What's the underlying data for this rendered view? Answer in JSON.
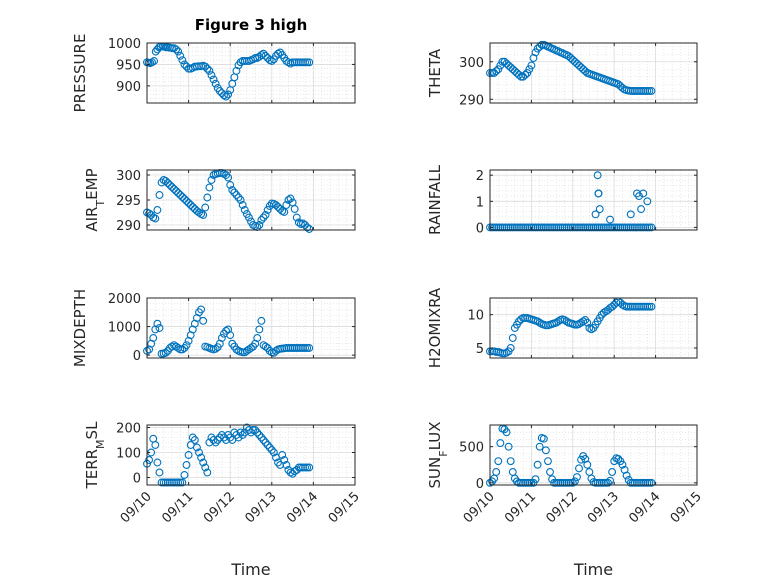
{
  "figure_title": "Figure 3 high",
  "x_axis_label": "Time",
  "marker_color": "#0072BD",
  "chart_data": [
    {
      "type": "scatter",
      "ylabel": "PRESSURE",
      "ylim": [
        860,
        1000
      ],
      "yticks": [
        900,
        950,
        1000
      ],
      "x": [
        0.0,
        0.04,
        0.08,
        0.12,
        0.17,
        0.21,
        0.25,
        0.29,
        0.33,
        0.38,
        0.42,
        0.46,
        0.5,
        0.55,
        0.6,
        0.65,
        0.7,
        0.75,
        0.8,
        0.85,
        0.9,
        0.95,
        1.0,
        1.05,
        1.1,
        1.15,
        1.2,
        1.25,
        1.3,
        1.35,
        1.4,
        1.45,
        1.5,
        1.55,
        1.6,
        1.65,
        1.7,
        1.75,
        1.8,
        1.85,
        1.9,
        1.95,
        2.0,
        2.05,
        2.1,
        2.15,
        2.2,
        2.25,
        2.3,
        2.35,
        2.4,
        2.45,
        2.5,
        2.55,
        2.6,
        2.65,
        2.7,
        2.75,
        2.8,
        2.85,
        2.9,
        2.95,
        3.0,
        3.05,
        3.1,
        3.15,
        3.2,
        3.25,
        3.3,
        3.35,
        3.4,
        3.45,
        3.5,
        3.55,
        3.6,
        3.65,
        3.7,
        3.75,
        3.8,
        3.85,
        3.9
      ],
      "y": [
        955,
        954,
        953,
        955,
        958,
        980,
        985,
        990,
        992,
        992,
        991,
        990,
        990,
        989,
        988,
        988,
        985,
        980,
        970,
        960,
        950,
        945,
        940,
        940,
        942,
        945,
        945,
        946,
        946,
        947,
        945,
        940,
        935,
        925,
        915,
        905,
        895,
        888,
        883,
        878,
        875,
        880,
        890,
        905,
        920,
        935,
        948,
        955,
        958,
        958,
        958,
        958,
        960,
        962,
        965,
        965,
        968,
        972,
        975,
        970,
        965,
        960,
        958,
        962,
        970,
        975,
        978,
        972,
        965,
        958,
        955,
        952,
        955,
        955,
        955,
        955,
        955,
        955,
        955,
        955,
        955
      ]
    },
    {
      "type": "scatter",
      "ylabel": "THETA",
      "ylim": [
        289,
        305
      ],
      "yticks": [
        290,
        300
      ],
      "x": [
        0.0,
        0.05,
        0.1,
        0.15,
        0.2,
        0.25,
        0.3,
        0.35,
        0.4,
        0.45,
        0.5,
        0.55,
        0.6,
        0.65,
        0.7,
        0.75,
        0.8,
        0.85,
        0.9,
        0.95,
        1.0,
        1.05,
        1.1,
        1.15,
        1.2,
        1.25,
        1.3,
        1.35,
        1.4,
        1.45,
        1.5,
        1.55,
        1.6,
        1.65,
        1.7,
        1.75,
        1.8,
        1.85,
        1.9,
        1.95,
        2.0,
        2.05,
        2.1,
        2.15,
        2.2,
        2.25,
        2.3,
        2.35,
        2.4,
        2.45,
        2.5,
        2.55,
        2.6,
        2.65,
        2.7,
        2.75,
        2.8,
        2.85,
        2.9,
        2.95,
        3.0,
        3.05,
        3.1,
        3.15,
        3.2,
        3.25,
        3.3,
        3.35,
        3.4,
        3.45,
        3.5,
        3.55,
        3.6,
        3.65,
        3.7,
        3.75,
        3.8,
        3.85,
        3.9
      ],
      "y": [
        297,
        297,
        297,
        297.5,
        298,
        299,
        300,
        300,
        299.5,
        299,
        298.5,
        298,
        297.5,
        297,
        296.5,
        296,
        296,
        296.5,
        297,
        298,
        299,
        301,
        302.5,
        303.5,
        304,
        304.5,
        304.5,
        304.3,
        304,
        303.8,
        303.5,
        303.3,
        303,
        302.8,
        302.5,
        302.3,
        302,
        301.8,
        301.5,
        301,
        300.5,
        300,
        299.5,
        299,
        298.5,
        298,
        297.5,
        297,
        296.8,
        296.6,
        296.4,
        296.2,
        296,
        295.8,
        295.6,
        295.4,
        295.2,
        295,
        294.8,
        294.6,
        294.4,
        294.2,
        294,
        293.5,
        293,
        292.6,
        292.4,
        292.3,
        292.2,
        292.2,
        292.2,
        292.2,
        292.2,
        292.2,
        292.2,
        292.2,
        292.2,
        292.2,
        292.2
      ]
    },
    {
      "type": "scatter",
      "ylabel": "AIR_TEMP",
      "ylim": [
        289,
        301
      ],
      "yticks": [
        290,
        295,
        300
      ],
      "x": [
        0.0,
        0.05,
        0.1,
        0.15,
        0.2,
        0.25,
        0.3,
        0.35,
        0.4,
        0.45,
        0.5,
        0.55,
        0.6,
        0.65,
        0.7,
        0.75,
        0.8,
        0.85,
        0.9,
        0.95,
        1.0,
        1.05,
        1.1,
        1.15,
        1.2,
        1.25,
        1.3,
        1.35,
        1.4,
        1.45,
        1.5,
        1.55,
        1.6,
        1.65,
        1.7,
        1.75,
        1.8,
        1.85,
        1.9,
        1.95,
        2.0,
        2.05,
        2.1,
        2.15,
        2.2,
        2.25,
        2.3,
        2.35,
        2.4,
        2.45,
        2.5,
        2.55,
        2.6,
        2.65,
        2.7,
        2.75,
        2.8,
        2.85,
        2.9,
        2.95,
        3.0,
        3.05,
        3.1,
        3.15,
        3.2,
        3.25,
        3.3,
        3.35,
        3.4,
        3.45,
        3.5,
        3.55,
        3.6,
        3.65,
        3.7,
        3.75,
        3.8,
        3.85,
        3.9
      ],
      "y": [
        292.5,
        292.3,
        292,
        291.5,
        291.3,
        293,
        296,
        298.5,
        299,
        298.8,
        298.4,
        298,
        297.6,
        297.2,
        296.8,
        296.4,
        296,
        295.6,
        295.2,
        294.8,
        294.4,
        294,
        293.6,
        293.2,
        292.8,
        292.5,
        292.2,
        292,
        293.5,
        295.5,
        297.5,
        299,
        300,
        300.2,
        300.3,
        300.4,
        300.4,
        300.2,
        300,
        299.5,
        298,
        297,
        296.5,
        296,
        295.5,
        295,
        294,
        293,
        292.2,
        291.5,
        290.7,
        290,
        289.8,
        289.6,
        290,
        291,
        291.5,
        292,
        293,
        293.8,
        294.3,
        294.2,
        294,
        293.6,
        293.2,
        292.8,
        292.6,
        294,
        295,
        295.3,
        294.5,
        293.2,
        291.5,
        290.5,
        290.2,
        290.3,
        290,
        289.5,
        289.2
      ]
    },
    {
      "type": "scatter",
      "ylabel": "RAINFALL",
      "ylim": [
        -0.1,
        2.2
      ],
      "yticks": [
        0,
        1,
        2
      ],
      "x": [
        0.0,
        0.05,
        0.1,
        0.15,
        0.2,
        0.25,
        0.3,
        0.35,
        0.4,
        0.45,
        0.5,
        0.55,
        0.6,
        0.65,
        0.7,
        0.75,
        0.8,
        0.85,
        0.9,
        0.95,
        1.0,
        1.05,
        1.1,
        1.15,
        1.2,
        1.25,
        1.3,
        1.35,
        1.4,
        1.45,
        1.5,
        1.55,
        1.6,
        1.65,
        1.7,
        1.75,
        1.8,
        1.85,
        1.9,
        1.95,
        2.0,
        2.05,
        2.1,
        2.15,
        2.2,
        2.25,
        2.3,
        2.35,
        2.4,
        2.45,
        2.5,
        2.55,
        2.6,
        2.65,
        2.7,
        2.75,
        2.8,
        2.85,
        2.9,
        2.95,
        3.0,
        3.05,
        3.1,
        3.15,
        3.2,
        3.25,
        3.3,
        3.35,
        3.4,
        3.45,
        3.5,
        3.55,
        3.6,
        3.65,
        3.7,
        3.75,
        3.8,
        3.85,
        3.9,
        2.55,
        2.6,
        2.62,
        2.65,
        2.62,
        2.9,
        3.4,
        3.55,
        3.6,
        3.65,
        3.7,
        3.8
      ],
      "y": [
        0,
        0,
        0,
        0,
        0,
        0,
        0,
        0,
        0,
        0,
        0,
        0,
        0,
        0,
        0,
        0,
        0,
        0,
        0,
        0,
        0,
        0,
        0,
        0,
        0,
        0,
        0,
        0,
        0,
        0,
        0,
        0,
        0,
        0,
        0,
        0,
        0,
        0,
        0,
        0,
        0,
        0,
        0,
        0,
        0,
        0,
        0,
        0,
        0,
        0,
        0,
        0,
        0,
        0,
        0,
        0,
        0,
        0,
        0,
        0,
        0,
        0,
        0,
        0,
        0,
        0,
        0,
        0,
        0,
        0,
        0,
        0,
        0,
        0,
        0,
        0,
        0,
        0,
        0,
        0.5,
        2,
        1.3,
        0.7,
        1.3,
        0.3,
        0.5,
        1.3,
        1.2,
        0.7,
        1.3,
        1
      ]
    },
    {
      "type": "scatter",
      "ylabel": "MIXDEPTH",
      "ylim": [
        -100,
        2000
      ],
      "yticks": [
        0,
        1000,
        2000
      ],
      "x": [
        0.0,
        0.05,
        0.1,
        0.15,
        0.2,
        0.25,
        0.3,
        0.35,
        0.4,
        0.45,
        0.5,
        0.55,
        0.6,
        0.65,
        0.7,
        0.75,
        0.8,
        0.85,
        0.9,
        0.95,
        1.0,
        1.05,
        1.1,
        1.15,
        1.2,
        1.25,
        1.3,
        1.35,
        1.4,
        1.45,
        1.5,
        1.55,
        1.6,
        1.65,
        1.7,
        1.75,
        1.8,
        1.85,
        1.9,
        1.95,
        2.0,
        2.05,
        2.1,
        2.15,
        2.2,
        2.25,
        2.3,
        2.35,
        2.4,
        2.45,
        2.5,
        2.55,
        2.6,
        2.65,
        2.7,
        2.75,
        2.8,
        2.85,
        2.9,
        2.95,
        3.0,
        3.05,
        3.1,
        3.15,
        3.2,
        3.25,
        3.3,
        3.35,
        3.4,
        3.45,
        3.5,
        3.55,
        3.6,
        3.65,
        3.7,
        3.75,
        3.8,
        3.85,
        3.9
      ],
      "y": [
        150,
        200,
        400,
        600,
        900,
        1100,
        950,
        50,
        60,
        80,
        150,
        250,
        300,
        350,
        300,
        250,
        200,
        200,
        250,
        350,
        500,
        700,
        900,
        1100,
        1300,
        1500,
        1600,
        1200,
        300,
        280,
        250,
        220,
        200,
        220,
        280,
        400,
        600,
        750,
        850,
        900,
        700,
        400,
        300,
        200,
        150,
        120,
        100,
        100,
        150,
        200,
        250,
        300,
        400,
        600,
        900,
        1200,
        350,
        300,
        250,
        150,
        100,
        80,
        150,
        200,
        220,
        230,
        240,
        250,
        250,
        250,
        250,
        250,
        250,
        250,
        250,
        250,
        250,
        250,
        250
      ]
    },
    {
      "type": "scatter",
      "ylabel": "H2OMIXRA",
      "ylim": [
        3.5,
        12.5
      ],
      "yticks": [
        5,
        10
      ],
      "x": [
        0.0,
        0.05,
        0.1,
        0.15,
        0.2,
        0.25,
        0.3,
        0.35,
        0.4,
        0.45,
        0.5,
        0.55,
        0.6,
        0.65,
        0.7,
        0.75,
        0.8,
        0.85,
        0.9,
        0.95,
        1.0,
        1.05,
        1.1,
        1.15,
        1.2,
        1.25,
        1.3,
        1.35,
        1.4,
        1.45,
        1.5,
        1.55,
        1.6,
        1.65,
        1.7,
        1.75,
        1.8,
        1.85,
        1.9,
        1.95,
        2.0,
        2.05,
        2.1,
        2.15,
        2.2,
        2.25,
        2.3,
        2.35,
        2.4,
        2.45,
        2.5,
        2.55,
        2.6,
        2.65,
        2.7,
        2.75,
        2.8,
        2.85,
        2.9,
        2.95,
        3.0,
        3.05,
        3.1,
        3.15,
        3.2,
        3.25,
        3.3,
        3.35,
        3.4,
        3.45,
        3.5,
        3.55,
        3.6,
        3.65,
        3.7,
        3.75,
        3.8,
        3.85,
        3.9
      ],
      "y": [
        4.5,
        4.5,
        4.5,
        4.4,
        4.4,
        4.3,
        4.2,
        4.2,
        4.3,
        4.5,
        5,
        6.5,
        8,
        8.5,
        9,
        9.3,
        9.5,
        9.5,
        9.5,
        9.4,
        9.3,
        9.2,
        9.1,
        9,
        8.8,
        8.6,
        8.5,
        8.4,
        8.4,
        8.5,
        8.6,
        8.7,
        8.8,
        9,
        9.2,
        9.3,
        9.2,
        9,
        8.8,
        8.7,
        8.6,
        8.5,
        8.5,
        8.6,
        8.8,
        9,
        9.2,
        8.8,
        8,
        7.8,
        8,
        8.5,
        9,
        9.5,
        10,
        10.3,
        10.5,
        10.7,
        11,
        11.2,
        11.5,
        11.8,
        12,
        11.8,
        11.5,
        11.3,
        11.2,
        11.2,
        11.2,
        11.2,
        11.2,
        11.2,
        11.2,
        11.2,
        11.2,
        11.2,
        11.2,
        11.2,
        11.2
      ]
    },
    {
      "type": "scatter",
      "ylabel": "TERR_MSL",
      "ylim": [
        -30,
        210
      ],
      "yticks": [
        0,
        100,
        200
      ],
      "x": [
        0.0,
        0.05,
        0.1,
        0.15,
        0.2,
        0.25,
        0.3,
        0.35,
        0.4,
        0.45,
        0.5,
        0.55,
        0.6,
        0.65,
        0.7,
        0.75,
        0.8,
        0.85,
        0.9,
        0.95,
        1.0,
        1.05,
        1.1,
        1.15,
        1.2,
        1.25,
        1.3,
        1.35,
        1.4,
        1.45,
        1.5,
        1.55,
        1.6,
        1.65,
        1.7,
        1.75,
        1.8,
        1.85,
        1.9,
        1.95,
        2.0,
        2.05,
        2.1,
        2.15,
        2.2,
        2.25,
        2.3,
        2.35,
        2.4,
        2.45,
        2.5,
        2.55,
        2.6,
        2.65,
        2.7,
        2.75,
        2.8,
        2.85,
        2.9,
        2.95,
        3.0,
        3.05,
        3.1,
        3.15,
        3.2,
        3.25,
        3.3,
        3.35,
        3.4,
        3.45,
        3.5,
        3.55,
        3.6,
        3.65,
        3.7,
        3.75,
        3.8,
        3.85,
        3.9
      ],
      "y": [
        55,
        70,
        100,
        155,
        130,
        60,
        20,
        -20,
        -20,
        -20,
        -20,
        -20,
        -20,
        -20,
        -20,
        -20,
        -20,
        -20,
        10,
        50,
        90,
        130,
        160,
        150,
        120,
        100,
        80,
        60,
        40,
        20,
        140,
        160,
        150,
        140,
        150,
        160,
        170,
        160,
        150,
        170,
        160,
        150,
        180,
        170,
        160,
        180,
        170,
        180,
        200,
        190,
        180,
        190,
        190,
        180,
        170,
        160,
        150,
        140,
        130,
        120,
        110,
        100,
        80,
        60,
        50,
        90,
        70,
        50,
        30,
        20,
        15,
        25,
        30,
        40,
        40,
        40,
        40,
        40,
        40
      ]
    },
    {
      "type": "scatter",
      "ylabel": "SUN_FLUX",
      "ylim": [
        -30,
        800
      ],
      "yticks": [
        0,
        500
      ],
      "x": [
        0.0,
        0.05,
        0.1,
        0.15,
        0.2,
        0.25,
        0.3,
        0.35,
        0.4,
        0.45,
        0.5,
        0.55,
        0.6,
        0.65,
        0.7,
        0.75,
        0.8,
        0.85,
        0.9,
        0.95,
        1.0,
        1.05,
        1.1,
        1.15,
        1.2,
        1.25,
        1.3,
        1.35,
        1.4,
        1.45,
        1.5,
        1.55,
        1.6,
        1.65,
        1.7,
        1.75,
        1.8,
        1.85,
        1.9,
        1.95,
        2.0,
        2.05,
        2.1,
        2.15,
        2.2,
        2.25,
        2.3,
        2.35,
        2.4,
        2.45,
        2.5,
        2.55,
        2.6,
        2.65,
        2.7,
        2.75,
        2.8,
        2.85,
        2.9,
        2.95,
        3.0,
        3.05,
        3.1,
        3.15,
        3.2,
        3.25,
        3.3,
        3.35,
        3.4,
        3.45,
        3.5,
        3.55,
        3.6,
        3.65,
        3.7,
        3.75,
        3.8,
        3.85,
        3.9
      ],
      "y": [
        0,
        20,
        60,
        150,
        300,
        550,
        750,
        740,
        700,
        500,
        300,
        150,
        60,
        20,
        0,
        0,
        0,
        0,
        0,
        0,
        0,
        0,
        50,
        250,
        500,
        620,
        610,
        450,
        300,
        150,
        50,
        0,
        0,
        0,
        0,
        0,
        0,
        0,
        0,
        0,
        0,
        20,
        80,
        200,
        320,
        370,
        330,
        250,
        150,
        60,
        10,
        0,
        0,
        0,
        0,
        0,
        0,
        0,
        30,
        150,
        300,
        340,
        330,
        300,
        250,
        180,
        100,
        40,
        0,
        0,
        0,
        0,
        0,
        0,
        0,
        0,
        0,
        0,
        0
      ]
    }
  ],
  "x_tick_labels": [
    "09/10",
    "09/11",
    "09/12",
    "09/13",
    "09/14",
    "09/15"
  ],
  "x_axis_range": [
    0,
    5
  ]
}
